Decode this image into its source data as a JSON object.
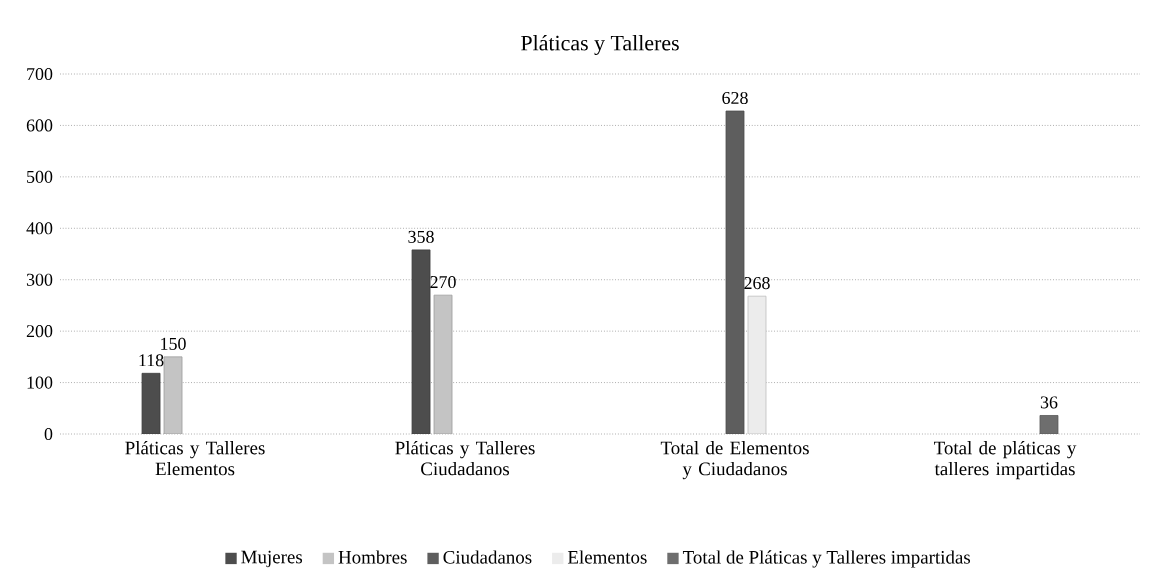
{
  "chart_data": {
    "type": "bar",
    "title": "Pláticas y Talleres",
    "categories": [
      "Pláticas y Talleres Elementos",
      "Pláticas y Talleres Ciudadanos",
      "Total de Elementos y Ciudadanos",
      "Total de pláticas y talleres impartidas"
    ],
    "series": [
      {
        "name": "Mujeres",
        "color": "#4d4d4d",
        "values": [
          118,
          358,
          null,
          null
        ]
      },
      {
        "name": "Hombres",
        "color": "#c4c4c4",
        "values": [
          150,
          270,
          null,
          null
        ]
      },
      {
        "name": "Ciudadanos",
        "color": "#5e5e5e",
        "values": [
          null,
          null,
          628,
          null
        ]
      },
      {
        "name": "Elementos",
        "color": "#ececec",
        "values": [
          null,
          null,
          268,
          null
        ]
      },
      {
        "name": "Total de Pláticas y Talleres impartidas",
        "color": "#6e6e6e",
        "values": [
          null,
          null,
          null,
          36
        ]
      }
    ],
    "ylim": [
      0,
      700
    ],
    "yticks": [
      0,
      100,
      200,
      300,
      400,
      500,
      600,
      700
    ],
    "grid": "y",
    "legend": "bottom",
    "data_labels": true
  }
}
